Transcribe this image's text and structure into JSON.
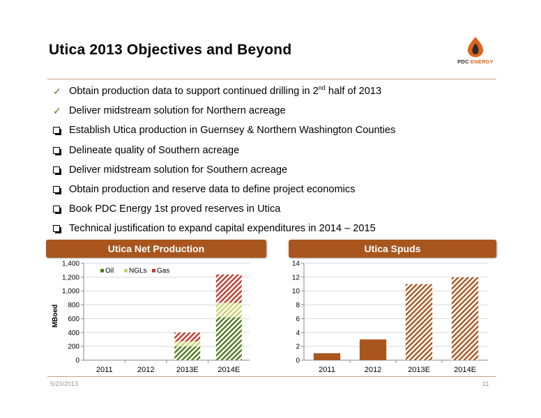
{
  "header": {
    "title": "Utica 2013 Objectives and Beyond",
    "logo_text_main": "PDC",
    "logo_text_accent": "ENERGY"
  },
  "bullets": [
    {
      "marker": "check",
      "text": "Obtain production data to support continued drilling in 2",
      "sup": "nd",
      "text_after": " half of 2013"
    },
    {
      "marker": "check",
      "text": "Deliver midstream solution for Northern acreage"
    },
    {
      "marker": "box",
      "text": "Establish Utica production in Guernsey & Northern Washington Counties"
    },
    {
      "marker": "box",
      "text": "Delineate quality of Southern acreage"
    },
    {
      "marker": "box",
      "text": "Deliver midstream solution for Southern acreage"
    },
    {
      "marker": "box",
      "text": "Obtain production and reserve data to define project economics"
    },
    {
      "marker": "box",
      "text": "Book PDC Energy 1st proved reserves in Utica"
    },
    {
      "marker": "box",
      "text": "Technical justification to expand capital expenditures in 2014 – 2015"
    }
  ],
  "banners": {
    "production": "Utica Net Production",
    "spuds": "Utica Spuds"
  },
  "chart_data": [
    {
      "type": "bar",
      "stacked": true,
      "title": "Utica Net Production",
      "categories": [
        "2011",
        "2012",
        "2013E",
        "2014E"
      ],
      "series": [
        {
          "name": "Oil",
          "values": [
            0,
            0,
            200,
            620
          ],
          "color": "#4F7A1F"
        },
        {
          "name": "NGLs",
          "values": [
            0,
            0,
            70,
            210
          ],
          "color": "#C9D26A"
        },
        {
          "name": "Gas",
          "values": [
            0,
            0,
            130,
            410
          ],
          "color": "#C0392B"
        }
      ],
      "ylabel": "MBoed",
      "ylim": [
        0,
        1400
      ],
      "yticks": [
        "0",
        "200",
        "400",
        "600",
        "800",
        "1,000",
        "1,200",
        "1,400"
      ],
      "legend": "top-left",
      "grid": true
    },
    {
      "type": "bar",
      "title": "Utica Spuds",
      "categories": [
        "2011",
        "2012",
        "2013E",
        "2014E"
      ],
      "values": [
        1,
        3,
        11,
        12
      ],
      "hatched": [
        false,
        false,
        true,
        true
      ],
      "color": "#A8561E",
      "ylim": [
        0,
        14
      ],
      "yticks": [
        "0",
        "2",
        "4",
        "6",
        "8",
        "10",
        "12",
        "14"
      ],
      "grid": true
    }
  ],
  "footer": {
    "date": "5/23/2013",
    "page": "11"
  }
}
